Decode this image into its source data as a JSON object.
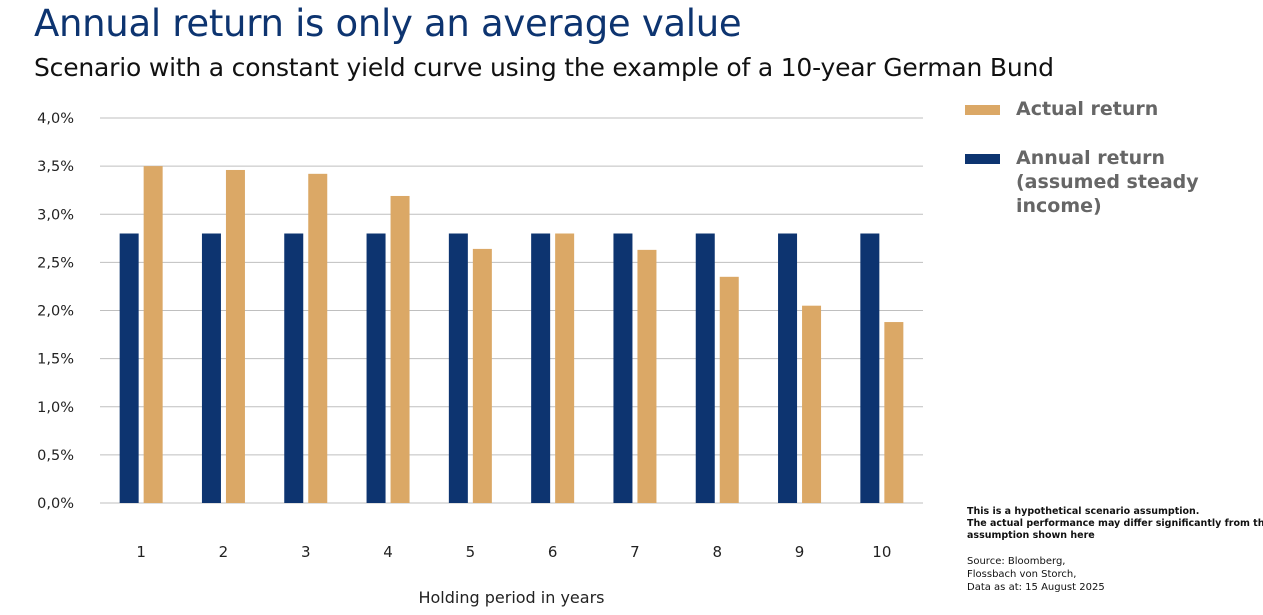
{
  "header": {
    "title": "Annual return is only an average value",
    "subtitle": "Scenario with a constant yield curve using the example of a 10-year German Bund"
  },
  "legend": {
    "items": [
      {
        "label_lines": [
          "Actual return"
        ],
        "color": "#dba866"
      },
      {
        "label_lines": [
          "Annual return",
          "(assumed steady",
          "income)"
        ],
        "color": "#0d3470"
      }
    ]
  },
  "notes": {
    "disclaimer_lines": [
      "This is a hypothetical scenario assumption.",
      "The actual performance may differ significantly from the",
      "assumption shown here"
    ],
    "source_lines": [
      "Source: Bloomberg,",
      "Flossbach von Storch,",
      "Data as at: 15 August 2025"
    ]
  },
  "chart_data": {
    "type": "bar",
    "xlabel": "Holding period in years",
    "ylabel": "",
    "categories": [
      "1",
      "2",
      "3",
      "4",
      "5",
      "6",
      "7",
      "8",
      "9",
      "10"
    ],
    "ylim": [
      0,
      4.0
    ],
    "yticks": [
      0,
      0.5,
      1.0,
      1.5,
      2.0,
      2.5,
      3.0,
      3.5,
      4.0
    ],
    "ytick_labels": [
      "0,0%",
      "0,5%",
      "1,0%",
      "1,5%",
      "2,0%",
      "2,5%",
      "3,0%",
      "3,5%",
      "4,0%"
    ],
    "grid": true,
    "legend_position": "right",
    "series": [
      {
        "name": "Annual return (assumed steady income)",
        "color": "#0d3470",
        "values": [
          2.8,
          2.8,
          2.8,
          2.8,
          2.8,
          2.8,
          2.8,
          2.8,
          2.8,
          2.8
        ]
      },
      {
        "name": "Actual return",
        "color": "#dba866",
        "values": [
          3.5,
          3.46,
          3.42,
          3.19,
          2.64,
          2.8,
          2.63,
          2.35,
          2.05,
          1.88
        ]
      }
    ]
  }
}
